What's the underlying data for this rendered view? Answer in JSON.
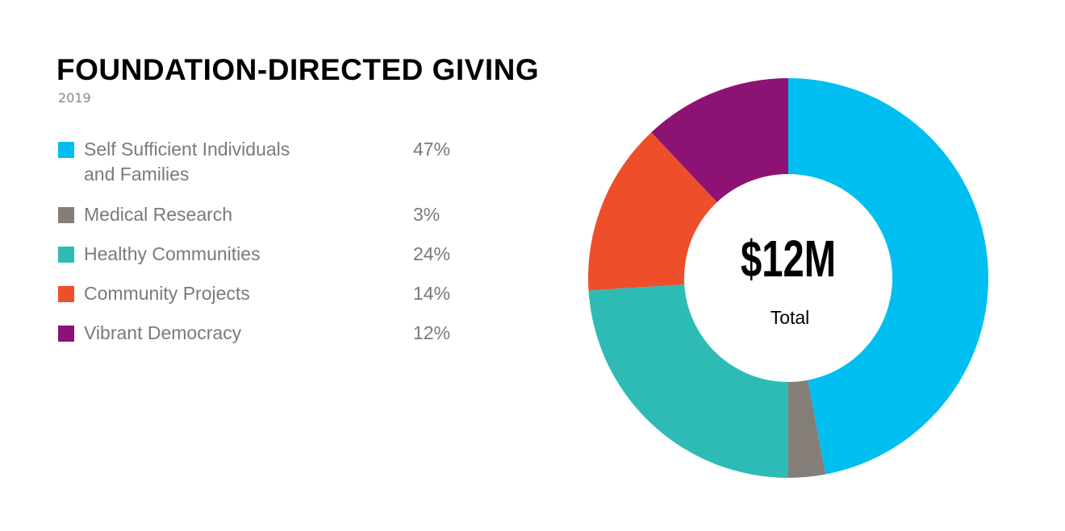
{
  "chart_data": {
    "type": "pie",
    "donut": true,
    "title": "FOUNDATION-DIRECTED GIVING",
    "subtitle": "2019",
    "center_label": "$12M",
    "center_sublabel": "Total",
    "categories": [
      "Self Sufficient Individuals and Families",
      "Medical Research",
      "Healthy Communities",
      "Community Projects",
      "Vibrant Democracy"
    ],
    "values": [
      47,
      3,
      24,
      14,
      12
    ],
    "value_labels": [
      "47%",
      "3%",
      "24%",
      "14%",
      "12%"
    ],
    "colors": [
      "#00bef0",
      "#857d78",
      "#2ebbb5",
      "#ef4e2a",
      "#8c1373"
    ]
  }
}
